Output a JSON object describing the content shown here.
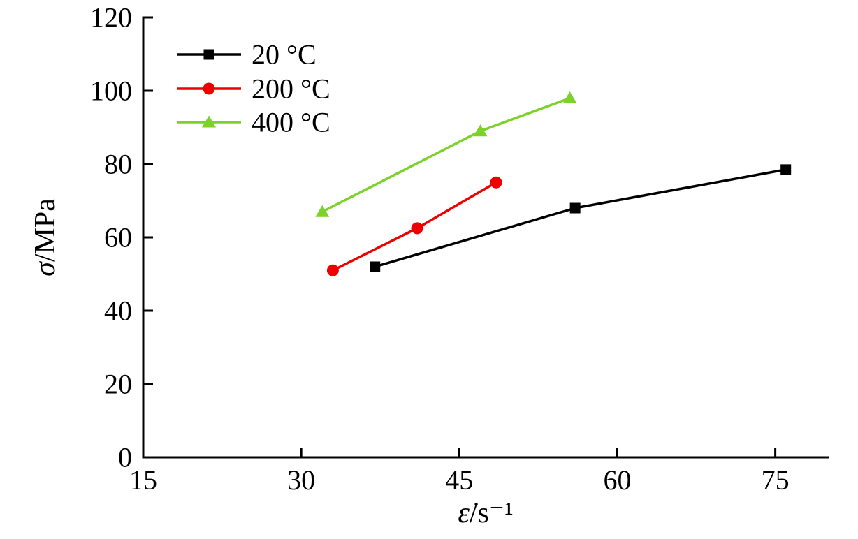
{
  "page": {
    "background": "#ffffff",
    "axis_color": "#000000",
    "text_color": "#000000"
  },
  "chart_data": {
    "type": "line",
    "title": "",
    "xlabel": "ε̇/s⁻¹",
    "ylabel": "σ/MPa",
    "xlim": [
      15,
      80
    ],
    "ylim": [
      0,
      120
    ],
    "xticks": [
      15,
      30,
      45,
      60,
      75
    ],
    "yticks": [
      0,
      20,
      40,
      60,
      80,
      100,
      120
    ],
    "grid": false,
    "legend_position": "top-left",
    "legend_entries": [
      "20 °C",
      "200 °C",
      "400 °C"
    ],
    "series": [
      {
        "name": "20 °C",
        "color": "#000000",
        "marker": "square",
        "points": [
          [
            37,
            52
          ],
          [
            56,
            68
          ],
          [
            76,
            78.5
          ]
        ]
      },
      {
        "name": "200 °C",
        "color": "#ee0000",
        "marker": "circle",
        "points": [
          [
            33,
            51
          ],
          [
            41,
            62.5
          ],
          [
            48.5,
            75
          ]
        ]
      },
      {
        "name": "400 °C",
        "color": "#7cd228",
        "marker": "triangle",
        "points": [
          [
            32,
            67
          ],
          [
            47,
            89
          ],
          [
            55.5,
            98
          ]
        ]
      }
    ]
  }
}
